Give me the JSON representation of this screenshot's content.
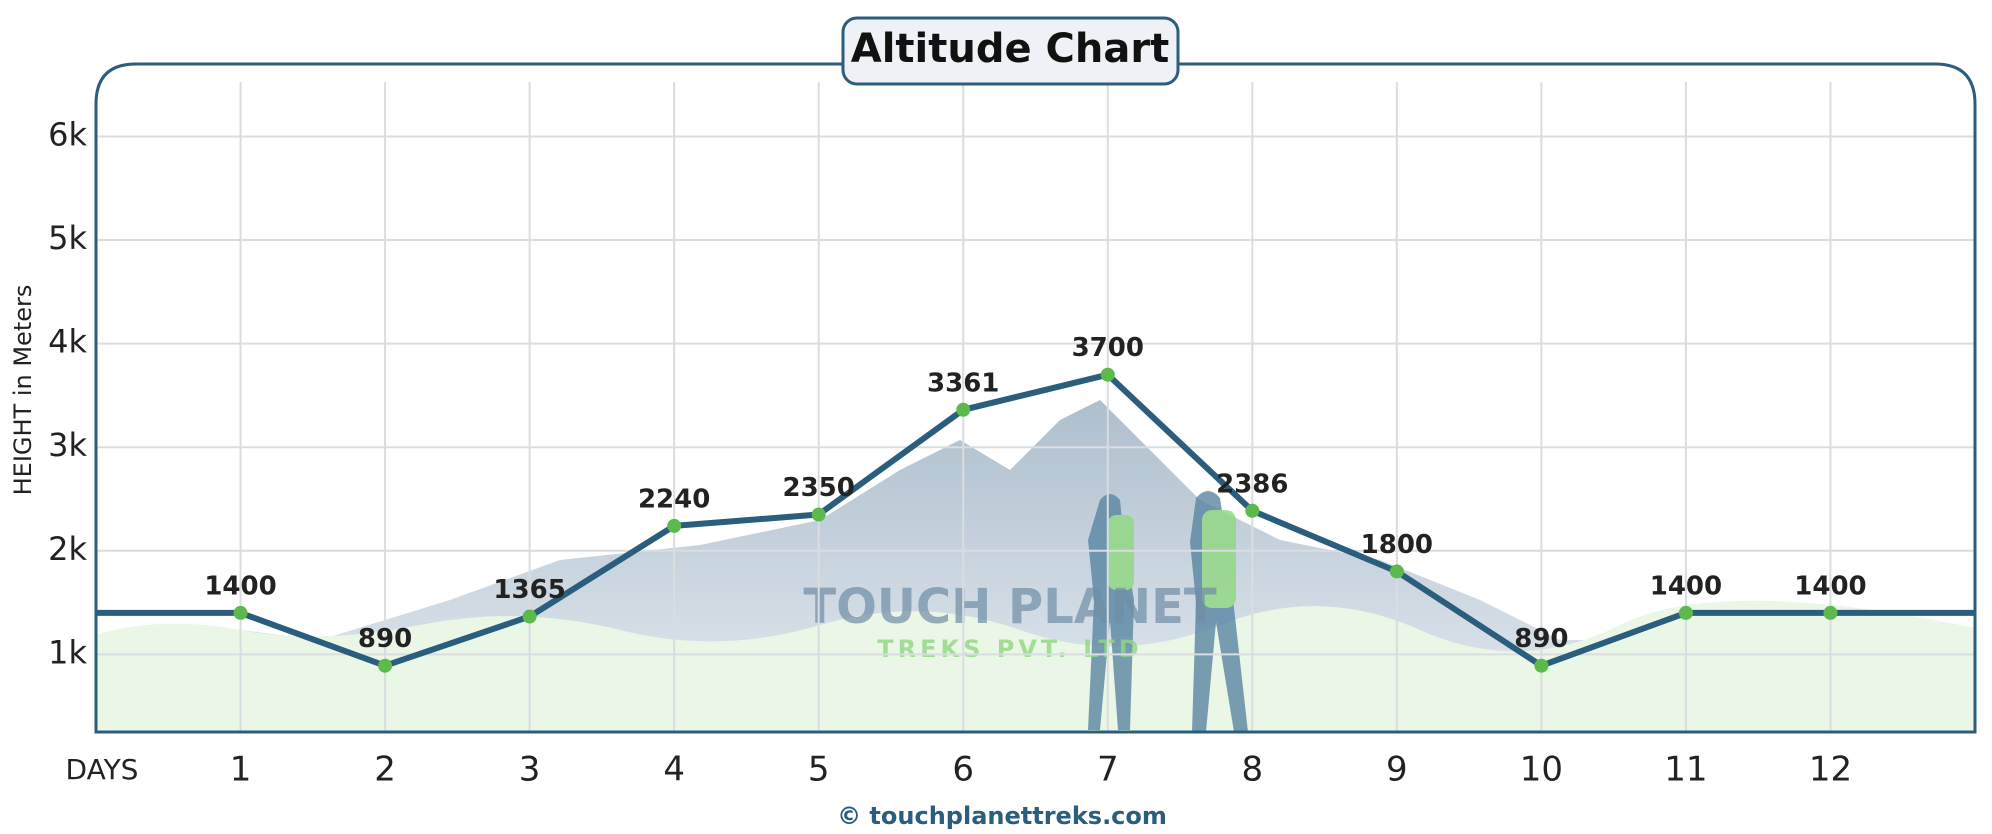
{
  "chart_data": {
    "type": "line",
    "title": "Altitude Chart",
    "y_label": "HEIGHT in Meters",
    "x_label": "DAYS",
    "watermark": [
      "TOUCH PLANET",
      "TREKS PVT. LTD"
    ],
    "footer": "© touchplanettreks.com",
    "x": [
      1,
      2,
      3,
      4,
      5,
      6,
      7,
      8,
      9,
      10,
      11,
      12
    ],
    "values": [
      1400,
      890,
      1365,
      2240,
      2350,
      3361,
      3700,
      2386,
      1800,
      890,
      1400,
      1400
    ],
    "color": "#2b5d7c",
    "marker_color": "#5cba4c",
    "xlim": [
      0,
      13
    ],
    "xticks": [
      1,
      2,
      3,
      4,
      5,
      6,
      7,
      8,
      9,
      10,
      11,
      12
    ],
    "ylim": [
      250,
      6700
    ],
    "yticks": [
      {
        "value": 1000,
        "label": "1k"
      },
      {
        "value": 2000,
        "label": "2k"
      },
      {
        "value": 3000,
        "label": "3k"
      },
      {
        "value": 4000,
        "label": "4k"
      },
      {
        "value": 5000,
        "label": "5k"
      },
      {
        "value": 6000,
        "label": "6k"
      }
    ],
    "grid": true
  }
}
